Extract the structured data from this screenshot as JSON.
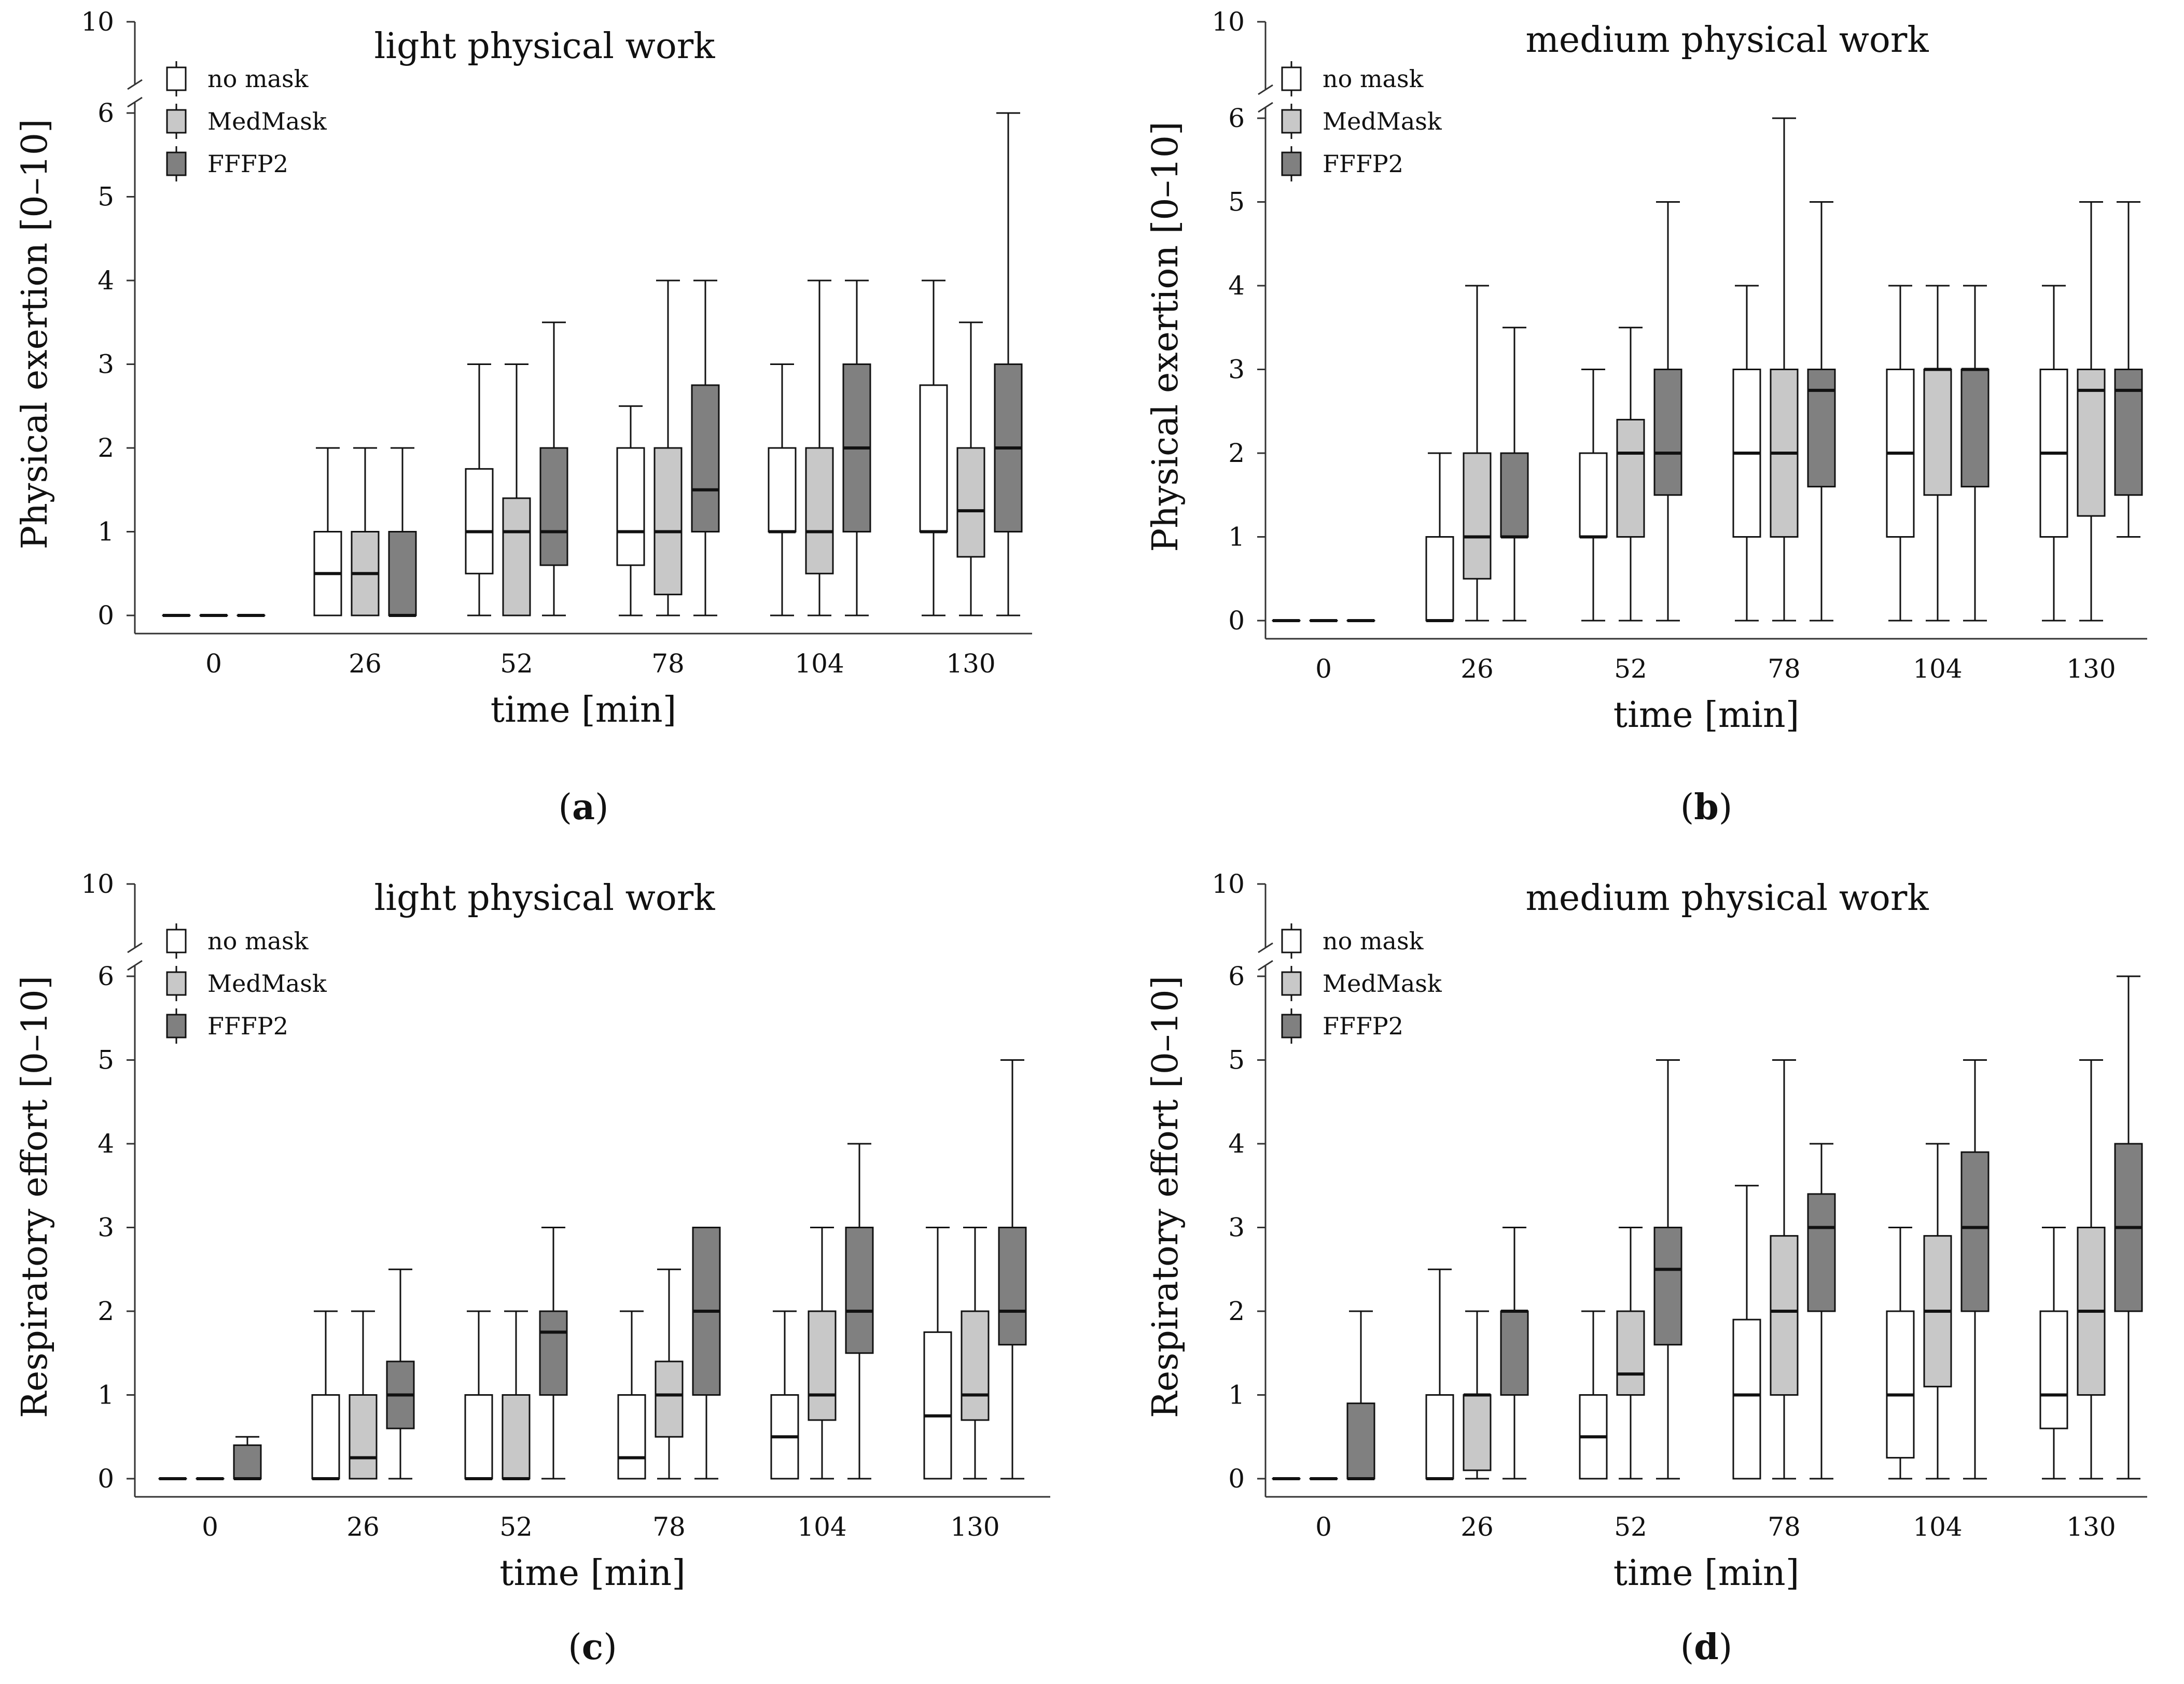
{
  "colors": {
    "no_mask": "#ffffff",
    "medmask": "#c8c8c8",
    "ffp2": "#808080",
    "stroke": "#111111"
  },
  "chart_data": [
    {
      "type": "box",
      "panel": "(a)",
      "panel_letter": "a",
      "title": "light physical work",
      "xlabel": "time [min]",
      "ylabel": "Physical exertion [0–10]",
      "categories": [
        "0",
        "26",
        "52",
        "78",
        "104",
        "130"
      ],
      "yticks": [
        "0",
        "1",
        "2",
        "3",
        "4",
        "5",
        "6",
        "10"
      ],
      "ylim": [
        0,
        10
      ],
      "axis_break": [
        6,
        10
      ],
      "legend_position": "top-left",
      "series": [
        {
          "name": "no mask",
          "boxes": [
            {
              "min": 0,
              "q1": 0,
              "median": 0,
              "q3": 0,
              "max": 0
            },
            {
              "min": 0,
              "q1": 0,
              "median": 0.5,
              "q3": 1,
              "max": 2
            },
            {
              "min": 0,
              "q1": 0.5,
              "median": 1,
              "q3": 1.75,
              "max": 3
            },
            {
              "min": 0,
              "q1": 0.6,
              "median": 1,
              "q3": 2,
              "max": 2.5
            },
            {
              "min": 0,
              "q1": 1,
              "median": 1,
              "q3": 2,
              "max": 3
            },
            {
              "min": 0,
              "q1": 1,
              "median": 1,
              "q3": 2.75,
              "max": 4
            }
          ]
        },
        {
          "name": "MedMask",
          "boxes": [
            {
              "min": 0,
              "q1": 0,
              "median": 0,
              "q3": 0,
              "max": 0
            },
            {
              "min": 0,
              "q1": 0,
              "median": 0.5,
              "q3": 1,
              "max": 2
            },
            {
              "min": 0,
              "q1": 0,
              "median": 1,
              "q3": 1.4,
              "max": 3
            },
            {
              "min": 0,
              "q1": 0.25,
              "median": 1,
              "q3": 2,
              "max": 4
            },
            {
              "min": 0,
              "q1": 0.5,
              "median": 1,
              "q3": 2,
              "max": 4
            },
            {
              "min": 0,
              "q1": 0.7,
              "median": 1.25,
              "q3": 2,
              "max": 3.5
            }
          ]
        },
        {
          "name": "FFFP2",
          "boxes": [
            {
              "min": 0,
              "q1": 0,
              "median": 0,
              "q3": 0,
              "max": 0
            },
            {
              "min": 0,
              "q1": 0,
              "median": 0,
              "q3": 1,
              "max": 2
            },
            {
              "min": 0,
              "q1": 0.6,
              "median": 1,
              "q3": 2,
              "max": 3.5
            },
            {
              "min": 0,
              "q1": 1,
              "median": 1.5,
              "q3": 2.75,
              "max": 4
            },
            {
              "min": 0,
              "q1": 1,
              "median": 2,
              "q3": 3,
              "max": 4
            },
            {
              "min": 0,
              "q1": 1,
              "median": 2,
              "q3": 3,
              "max": 6
            }
          ]
        }
      ]
    },
    {
      "type": "box",
      "panel": "(b)",
      "panel_letter": "b",
      "title": "medium physical work",
      "xlabel": "time [min]",
      "ylabel": "Physical exertion [0–10]",
      "categories": [
        "0",
        "26",
        "52",
        "78",
        "104",
        "130"
      ],
      "yticks": [
        "0",
        "1",
        "2",
        "3",
        "4",
        "5",
        "6",
        "10"
      ],
      "ylim": [
        0,
        10
      ],
      "axis_break": [
        6,
        10
      ],
      "legend_position": "top-left",
      "series": [
        {
          "name": "no mask",
          "boxes": [
            {
              "min": 0,
              "q1": 0,
              "median": 0,
              "q3": 0,
              "max": 0
            },
            {
              "min": 0,
              "q1": 0,
              "median": 0,
              "q3": 1,
              "max": 2
            },
            {
              "min": 0,
              "q1": 1,
              "median": 1,
              "q3": 2,
              "max": 3
            },
            {
              "min": 0,
              "q1": 1,
              "median": 2,
              "q3": 3,
              "max": 4
            },
            {
              "min": 0,
              "q1": 1,
              "median": 2,
              "q3": 3,
              "max": 4
            },
            {
              "min": 0,
              "q1": 1,
              "median": 2,
              "q3": 3,
              "max": 4
            }
          ]
        },
        {
          "name": "MedMask",
          "boxes": [
            {
              "min": 0,
              "q1": 0,
              "median": 0,
              "q3": 0,
              "max": 0
            },
            {
              "min": 0,
              "q1": 0.5,
              "median": 1,
              "q3": 2,
              "max": 4
            },
            {
              "min": 0,
              "q1": 1,
              "median": 2,
              "q3": 2.4,
              "max": 3.5
            },
            {
              "min": 0,
              "q1": 1,
              "median": 2,
              "q3": 3,
              "max": 6
            },
            {
              "min": 0,
              "q1": 1.5,
              "median": 3,
              "q3": 3,
              "max": 4
            },
            {
              "min": 0,
              "q1": 1.25,
              "median": 2.75,
              "q3": 3,
              "max": 5
            }
          ]
        },
        {
          "name": "FFFP2",
          "boxes": [
            {
              "min": 0,
              "q1": 0,
              "median": 0,
              "q3": 0,
              "max": 0
            },
            {
              "min": 0,
              "q1": 1,
              "median": 1,
              "q3": 2,
              "max": 3.5
            },
            {
              "min": 0,
              "q1": 1.5,
              "median": 2,
              "q3": 3,
              "max": 5
            },
            {
              "min": 0,
              "q1": 1.6,
              "median": 2.75,
              "q3": 3,
              "max": 5
            },
            {
              "min": 0,
              "q1": 1.6,
              "median": 3,
              "q3": 3,
              "max": 4
            },
            {
              "min": 1,
              "q1": 1.5,
              "median": 2.75,
              "q3": 3,
              "max": 5
            }
          ]
        }
      ]
    },
    {
      "type": "box",
      "panel": "(c)",
      "panel_letter": "c",
      "title": "light physical work",
      "xlabel": "time [min]",
      "ylabel": "Respiratory effort [0–10]",
      "categories": [
        "0",
        "26",
        "52",
        "78",
        "104",
        "130"
      ],
      "yticks": [
        "0",
        "1",
        "2",
        "3",
        "4",
        "5",
        "6",
        "10"
      ],
      "ylim": [
        0,
        10
      ],
      "axis_break": [
        6,
        10
      ],
      "legend_position": "top-left",
      "series": [
        {
          "name": "no mask",
          "boxes": [
            {
              "min": 0,
              "q1": 0,
              "median": 0,
              "q3": 0,
              "max": 0
            },
            {
              "min": 0,
              "q1": 0,
              "median": 0,
              "q3": 1,
              "max": 2
            },
            {
              "min": 0,
              "q1": 0,
              "median": 0,
              "q3": 1,
              "max": 2
            },
            {
              "min": 0,
              "q1": 0,
              "median": 0.25,
              "q3": 1,
              "max": 2
            },
            {
              "min": 0,
              "q1": 0,
              "median": 0.5,
              "q3": 1,
              "max": 2
            },
            {
              "min": 0,
              "q1": 0,
              "median": 0.75,
              "q3": 1.75,
              "max": 3
            }
          ]
        },
        {
          "name": "MedMask",
          "boxes": [
            {
              "min": 0,
              "q1": 0,
              "median": 0,
              "q3": 0,
              "max": 0
            },
            {
              "min": 0,
              "q1": 0,
              "median": 0.25,
              "q3": 1,
              "max": 2
            },
            {
              "min": 0,
              "q1": 0,
              "median": 0,
              "q3": 1,
              "max": 2
            },
            {
              "min": 0,
              "q1": 0.5,
              "median": 1,
              "q3": 1.4,
              "max": 2.5
            },
            {
              "min": 0,
              "q1": 0.7,
              "median": 1,
              "q3": 2,
              "max": 3
            },
            {
              "min": 0,
              "q1": 0.7,
              "median": 1,
              "q3": 2,
              "max": 3
            }
          ]
        },
        {
          "name": "FFFP2",
          "boxes": [
            {
              "min": 0,
              "q1": 0,
              "median": 0,
              "q3": 0.4,
              "max": 0.5
            },
            {
              "min": 0,
              "q1": 0.6,
              "median": 1,
              "q3": 1.4,
              "max": 2.5
            },
            {
              "min": 0,
              "q1": 1,
              "median": 1.75,
              "q3": 2,
              "max": 3
            },
            {
              "min": 0,
              "q1": 1,
              "median": 2,
              "q3": 3,
              "max": 3
            },
            {
              "min": 0,
              "q1": 1.5,
              "median": 2,
              "q3": 3,
              "max": 4
            },
            {
              "min": 0,
              "q1": 1.6,
              "median": 2,
              "q3": 3,
              "max": 5
            }
          ]
        }
      ]
    },
    {
      "type": "box",
      "panel": "(d)",
      "panel_letter": "d",
      "title": "medium physical work",
      "xlabel": "time [min]",
      "ylabel": "Respiratory effort [0–10]",
      "categories": [
        "0",
        "26",
        "52",
        "78",
        "104",
        "130"
      ],
      "yticks": [
        "0",
        "1",
        "2",
        "3",
        "4",
        "5",
        "6",
        "10"
      ],
      "ylim": [
        0,
        10
      ],
      "axis_break": [
        6,
        10
      ],
      "legend_position": "top-left",
      "series": [
        {
          "name": "no mask",
          "boxes": [
            {
              "min": 0,
              "q1": 0,
              "median": 0,
              "q3": 0,
              "max": 0
            },
            {
              "min": 0,
              "q1": 0,
              "median": 0,
              "q3": 1,
              "max": 2.5
            },
            {
              "min": 0,
              "q1": 0,
              "median": 0.5,
              "q3": 1,
              "max": 2
            },
            {
              "min": 0,
              "q1": 0,
              "median": 1,
              "q3": 1.9,
              "max": 3.5
            },
            {
              "min": 0,
              "q1": 0.25,
              "median": 1,
              "q3": 2,
              "max": 3
            },
            {
              "min": 0,
              "q1": 0.6,
              "median": 1,
              "q3": 2,
              "max": 3
            }
          ]
        },
        {
          "name": "MedMask",
          "boxes": [
            {
              "min": 0,
              "q1": 0,
              "median": 0,
              "q3": 0,
              "max": 0
            },
            {
              "min": 0,
              "q1": 0.1,
              "median": 1,
              "q3": 1,
              "max": 2
            },
            {
              "min": 0,
              "q1": 1,
              "median": 1.25,
              "q3": 2,
              "max": 3
            },
            {
              "min": 0,
              "q1": 1,
              "median": 2,
              "q3": 2.9,
              "max": 5
            },
            {
              "min": 0,
              "q1": 1.1,
              "median": 2,
              "q3": 2.9,
              "max": 4
            },
            {
              "min": 0,
              "q1": 1,
              "median": 2,
              "q3": 3,
              "max": 5
            }
          ]
        },
        {
          "name": "FFFP2",
          "boxes": [
            {
              "min": 0,
              "q1": 0,
              "median": 0,
              "q3": 0.9,
              "max": 2
            },
            {
              "min": 0,
              "q1": 1,
              "median": 2,
              "q3": 2,
              "max": 3
            },
            {
              "min": 0,
              "q1": 1.6,
              "median": 2.5,
              "q3": 3,
              "max": 5
            },
            {
              "min": 0,
              "q1": 2,
              "median": 3,
              "q3": 3.4,
              "max": 4
            },
            {
              "min": 0,
              "q1": 2,
              "median": 3,
              "q3": 3.9,
              "max": 5
            },
            {
              "min": 0,
              "q1": 2,
              "median": 3,
              "q3": 4,
              "max": 6
            }
          ]
        }
      ]
    }
  ]
}
